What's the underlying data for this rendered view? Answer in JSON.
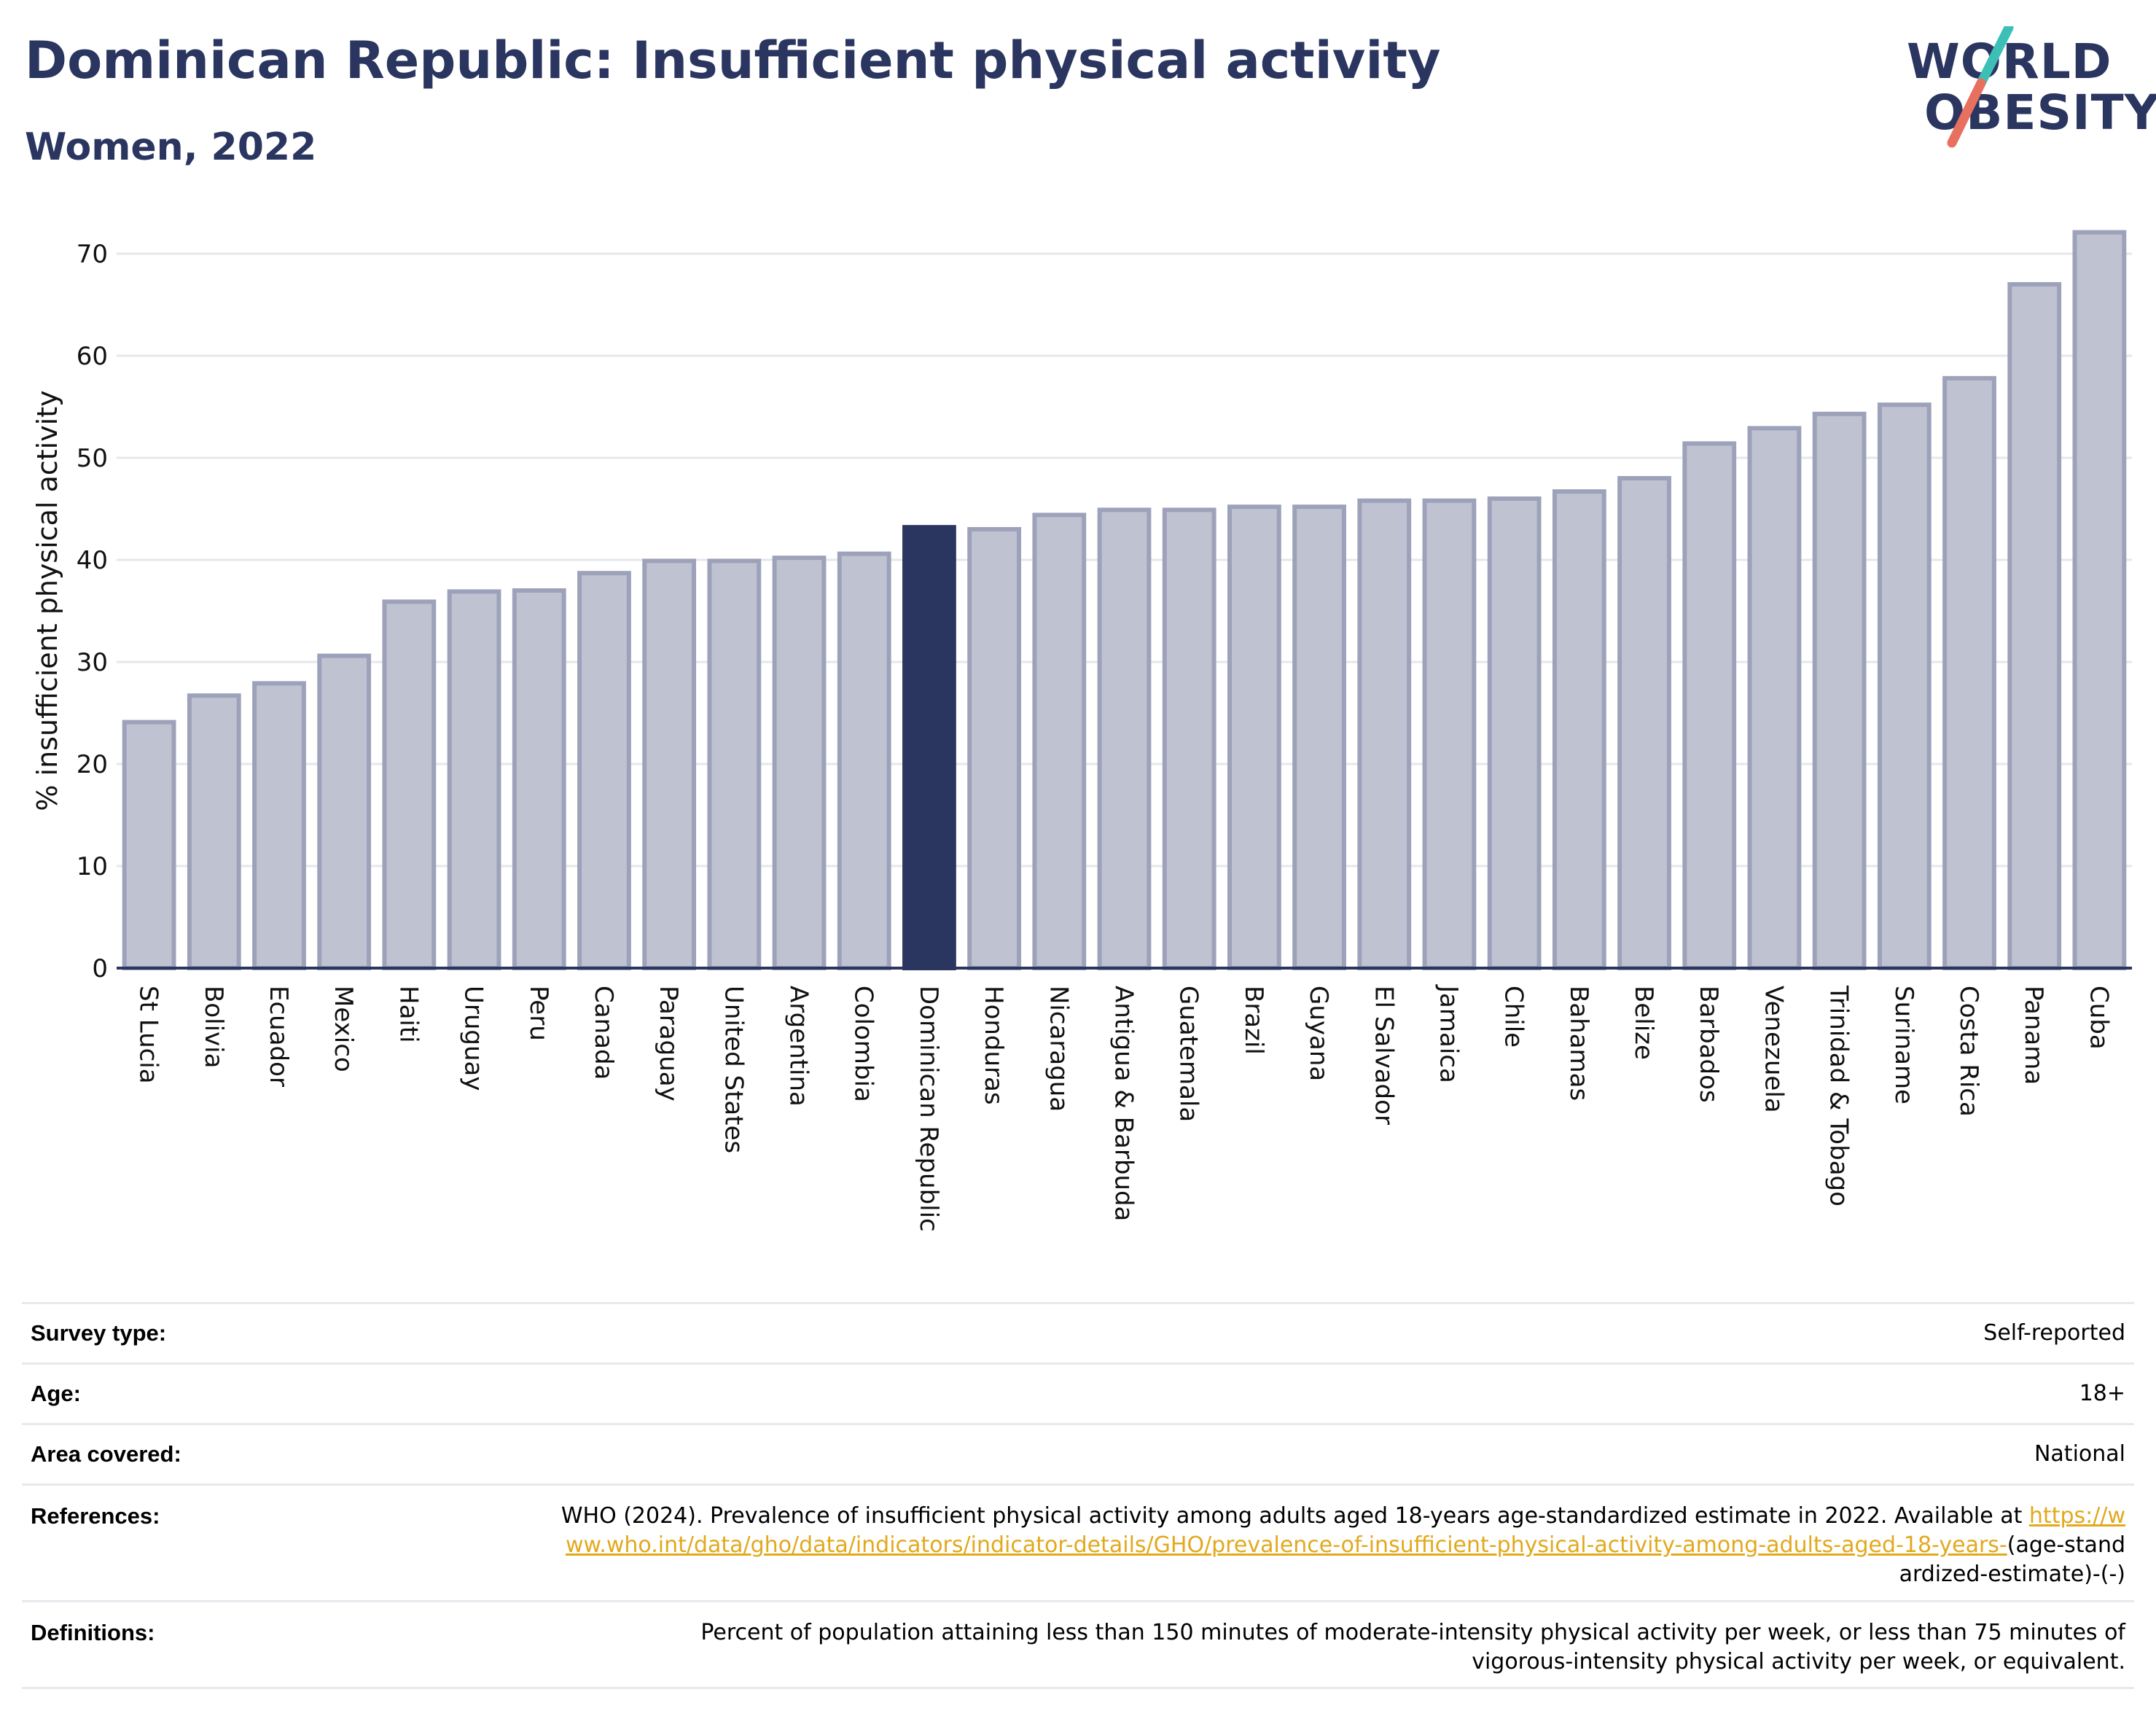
{
  "header": {
    "title": "Dominican Republic: Insufficient physical activity",
    "subtitle": "Women, 2022"
  },
  "logo": {
    "line1": "WORLD",
    "line2": "OBESITY",
    "text": "WORLD OBESITY"
  },
  "colors": {
    "title": "#2a3560",
    "bar": "#bfc2d1",
    "bar_border": "#9da2ba",
    "highlight": "#2a3560",
    "link": "#e2a91d",
    "logo_slash_top": "#3cbfb7",
    "logo_slash_bottom": "#e8705f"
  },
  "chart_data": {
    "type": "bar",
    "ylabel": "% insufficient physical activity",
    "ylim": [
      0,
      72
    ],
    "yticks": [
      0,
      10,
      20,
      30,
      40,
      50,
      60,
      70
    ],
    "grid": true,
    "highlight": "Dominican Republic",
    "categories": [
      "St Lucia",
      "Bolivia",
      "Ecuador",
      "Mexico",
      "Haiti",
      "Uruguay",
      "Peru",
      "Canada",
      "Paraguay",
      "United States",
      "Argentina",
      "Colombia",
      "Dominican Republic",
      "Honduras",
      "Nicaragua",
      "Antigua & Barbuda",
      "Guatemala",
      "Brazil",
      "Guyana",
      "El Salvador",
      "Jamaica",
      "Chile",
      "Bahamas",
      "Belize",
      "Barbados",
      "Venezuela",
      "Trinidad & Tobago",
      "Suriname",
      "Costa Rica",
      "Panama",
      "Cuba"
    ],
    "values": [
      24.1,
      26.7,
      27.9,
      30.6,
      35.9,
      36.9,
      37.0,
      38.7,
      39.9,
      39.9,
      40.2,
      40.6,
      43.2,
      43.0,
      44.4,
      44.9,
      44.9,
      45.2,
      45.2,
      45.8,
      45.8,
      46.0,
      46.7,
      48.0,
      51.4,
      52.9,
      54.3,
      55.2,
      57.8,
      67.0,
      72.1
    ]
  },
  "info_table": {
    "survey_type_label": "Survey type:",
    "survey_type_value": "Self-reported",
    "age_label": "Age:",
    "age_value": "18+",
    "area_label": "Area covered:",
    "area_value": "National",
    "references_label": "References:",
    "references_text": "WHO (2024). Prevalence of insufficient physical activity among adults aged 18-years age-standardized estimate in 2022. Available at",
    "references_link": "https://www.who.int/data/gho/data/indicators/indicator-details/GHO/prevalence-of-insufficient-physical-activity-among-adults-aged-18-years-",
    "references_suffix": "(age-standardized-estimate)-(-)",
    "definitions_label": "Definitions:",
    "definitions_text": "Percent of population attaining less than 150 minutes of moderate-intensity physical activity per week, or less than 75 minutes of vigorous-intensity physical activity per week, or equivalent."
  }
}
